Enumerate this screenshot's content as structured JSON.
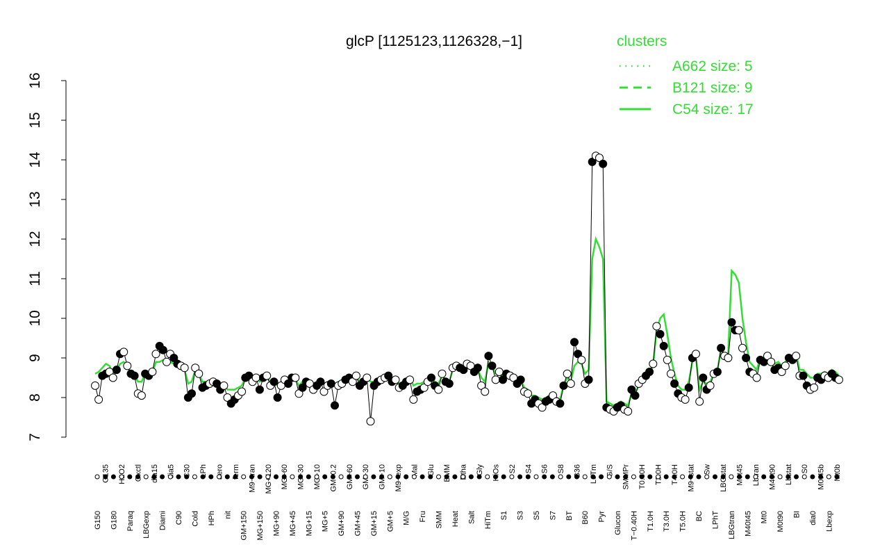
{
  "chart_data": {
    "type": "line",
    "title": "glcP [1125123,1126328,−1]",
    "xlabel": "",
    "ylabel": "",
    "ylim": [
      7,
      16
    ],
    "y_ticks": [
      "7",
      "8",
      "9",
      "10",
      "11",
      "12",
      "13",
      "14",
      "15",
      "16"
    ],
    "grid": false,
    "legend": {
      "title": "clusters",
      "placement": "top-right",
      "color": "#33dd33",
      "entries": [
        {
          "label": "A662 size: 5",
          "style": "dotted"
        },
        {
          "label": "B121 size: 9",
          "style": "dashed"
        },
        {
          "label": "C54 size: 17",
          "style": "solid"
        }
      ]
    },
    "colors": {
      "cluster_line": "#33dd33",
      "main_line": "#000000",
      "open_point": "#ffffff",
      "filled_point": "#000000"
    },
    "x_labels": [
      "G150",
      "G135",
      "G180",
      "H2O2",
      "Paraq",
      "Oxctl",
      "LBGexp",
      "dia15",
      "Diami",
      "dia5",
      "C90",
      "C30",
      "Cold",
      "LPh",
      "HPh",
      "aero",
      "nit",
      "ferm",
      "GM+150",
      "M9−tran",
      "MG+150",
      "MG+120",
      "MG+90",
      "MG+60",
      "MG+45",
      "MG+30",
      "MG+15",
      "MG+10",
      "MG+5",
      "GM−0.2",
      "GM+90",
      "GM+60",
      "GM+45",
      "GM+30",
      "GM+15",
      "GM+10",
      "GM+5",
      "M9−exp",
      "M/G",
      "Mal",
      "Fru",
      "Glu",
      "SMM",
      "BMM",
      "Heat",
      "Etha",
      "Salt",
      "Gly",
      "HiTm",
      "HiOs",
      "S1",
      "S2",
      "S3",
      "S4",
      "S5",
      "S6",
      "S7",
      "S8",
      "BT",
      "B36",
      "B60",
      "LoTm",
      "Pyr",
      "G/S",
      "Glucon",
      "SMMPr",
      "T−0.40H",
      "T0.30H",
      "T1.0H",
      "T2.0H",
      "T3.0H",
      "T4.0H",
      "T5.0H",
      "M9−stat",
      "BC",
      "Sw",
      "LPhT",
      "LBGstat",
      "LBGtran",
      "M0t45",
      "M40t45",
      "Lbtran",
      "Mt0",
      "M40t90",
      "M0t90",
      "Lbstat",
      "BI",
      "S0",
      "dia0",
      "M0t45b",
      "Lbexp",
      "Mt0b"
    ],
    "series": [
      {
        "values": [
          8.3,
          7.95,
          8.55,
          8.6,
          8.65,
          8.5,
          8.7,
          9.1,
          9.15,
          8.8,
          8.6,
          8.55,
          8.1,
          8.05,
          8.6,
          8.55,
          8.65,
          9.1,
          9.3,
          9.2,
          8.9,
          9.1,
          9.0,
          8.85,
          8.8,
          8.75,
          8.0,
          8.1,
          8.75,
          8.6,
          8.25,
          8.3,
          8.35,
          8.4,
          8.35,
          8.2,
          8.3,
          8.0,
          7.85,
          7.95,
          8.05,
          8.15,
          8.5,
          8.55,
          8.4,
          8.5,
          8.2,
          8.5,
          8.55,
          8.3,
          8.4,
          8.0,
          8.3,
          8.45,
          8.35,
          8.5,
          8.5,
          8.1,
          8.25,
          8.4,
          8.35,
          8.2,
          8.3,
          8.4,
          8.15,
          8.3,
          8.35,
          7.8,
          8.3,
          8.35,
          8.45,
          8.5,
          8.4,
          8.55,
          8.3,
          8.4,
          8.5,
          7.4,
          8.3,
          8.4,
          8.45,
          8.5,
          8.55,
          8.4,
          8.45,
          8.25,
          8.3,
          8.4,
          8.45,
          7.95,
          8.15,
          8.2,
          8.25,
          8.4,
          8.5,
          8.3,
          8.2,
          8.6,
          8.4,
          8.35,
          8.75,
          8.8,
          8.75,
          8.7,
          8.85,
          8.8,
          8.65,
          8.75,
          8.3,
          8.15,
          9.05,
          8.8,
          8.45,
          8.65,
          8.45,
          8.6,
          8.55,
          8.5,
          8.35,
          8.45,
          8.15,
          8.1,
          7.85,
          7.95,
          7.85,
          7.75,
          7.9,
          7.95,
          8.05,
          7.9,
          7.85,
          8.3,
          8.6,
          8.35,
          9.4,
          9.1,
          8.95,
          8.35,
          8.45,
          13.95,
          14.1,
          14.05,
          13.9,
          7.75,
          7.7,
          7.65,
          7.75,
          7.8,
          7.7,
          7.65,
          8.2,
          8.05,
          8.35,
          8.45,
          8.55,
          8.65,
          8.85,
          9.8,
          9.6,
          9.3,
          8.95,
          8.6,
          8.35,
          8.1,
          8.0,
          7.95,
          8.25,
          9.0,
          9.1,
          7.9,
          8.5,
          8.2,
          8.3,
          8.6,
          8.65,
          9.25,
          9.05,
          9.0,
          9.9,
          9.7,
          9.7,
          9.25,
          9.0,
          8.65,
          8.6,
          8.5,
          8.95,
          8.9,
          9.05,
          8.9,
          8.7,
          8.75,
          8.65,
          8.8,
          9.0,
          8.95,
          9.05,
          8.55,
          8.55,
          8.3,
          8.2,
          8.25,
          8.5,
          8.45,
          8.55,
          8.5,
          8.6,
          8.5,
          8.45
        ]
      },
      {
        "name": "C54 size: 17",
        "values": [
          8.6,
          8.65,
          8.75,
          8.85,
          8.8,
          8.6,
          8.7,
          8.85,
          8.9,
          8.8,
          8.6,
          8.55,
          8.4,
          8.4,
          8.6,
          8.55,
          8.6,
          8.9,
          8.9,
          8.95,
          8.85,
          8.9,
          8.85,
          8.8,
          8.75,
          8.7,
          8.35,
          8.4,
          8.7,
          8.6,
          8.4,
          8.4,
          8.4,
          8.45,
          8.4,
          8.3,
          8.35,
          8.2,
          8.2,
          8.2,
          8.25,
          8.3,
          8.5,
          8.5,
          8.45,
          8.5,
          8.4,
          8.45,
          8.5,
          8.4,
          8.45,
          8.3,
          8.4,
          8.45,
          8.4,
          8.45,
          8.45,
          8.3,
          8.4,
          8.45,
          8.4,
          8.35,
          8.4,
          8.45,
          8.35,
          8.4,
          8.4,
          8.3,
          8.4,
          8.4,
          8.45,
          8.5,
          8.45,
          8.5,
          8.4,
          8.45,
          8.5,
          8.4,
          8.4,
          8.45,
          8.45,
          8.5,
          8.5,
          8.45,
          8.45,
          8.35,
          8.4,
          8.45,
          8.5,
          8.3,
          8.35,
          8.35,
          8.4,
          8.45,
          8.5,
          8.4,
          8.35,
          8.55,
          8.45,
          8.4,
          8.7,
          8.75,
          8.7,
          8.7,
          8.75,
          8.75,
          8.7,
          8.7,
          8.5,
          8.4,
          8.9,
          8.8,
          8.6,
          8.6,
          8.55,
          8.55,
          8.5,
          8.5,
          8.4,
          8.45,
          8.25,
          8.2,
          8.05,
          8.05,
          8.0,
          7.95,
          8.0,
          8.0,
          8.05,
          8.0,
          7.95,
          8.3,
          8.5,
          8.4,
          8.8,
          8.9,
          8.85,
          8.6,
          8.7,
          11.5,
          12.0,
          11.8,
          11.5,
          7.9,
          7.85,
          7.8,
          7.85,
          7.9,
          7.85,
          7.8,
          8.1,
          8.1,
          8.3,
          8.4,
          8.5,
          8.6,
          8.8,
          9.7,
          10.0,
          10.1,
          9.6,
          9.0,
          8.6,
          8.3,
          8.2,
          8.2,
          8.4,
          8.9,
          9.0,
          8.2,
          8.4,
          8.35,
          8.4,
          8.6,
          8.7,
          9.2,
          9.1,
          9.1,
          11.2,
          11.1,
          10.9,
          10.0,
          9.4,
          8.9,
          8.8,
          8.7,
          9.0,
          9.0,
          9.1,
          9.0,
          8.85,
          8.9,
          8.8,
          8.9,
          9.0,
          9.0,
          9.1,
          8.7,
          8.7,
          8.6,
          8.5,
          8.5,
          8.6,
          8.6,
          8.65,
          8.6,
          8.7,
          8.65,
          8.55
        ]
      }
    ]
  }
}
